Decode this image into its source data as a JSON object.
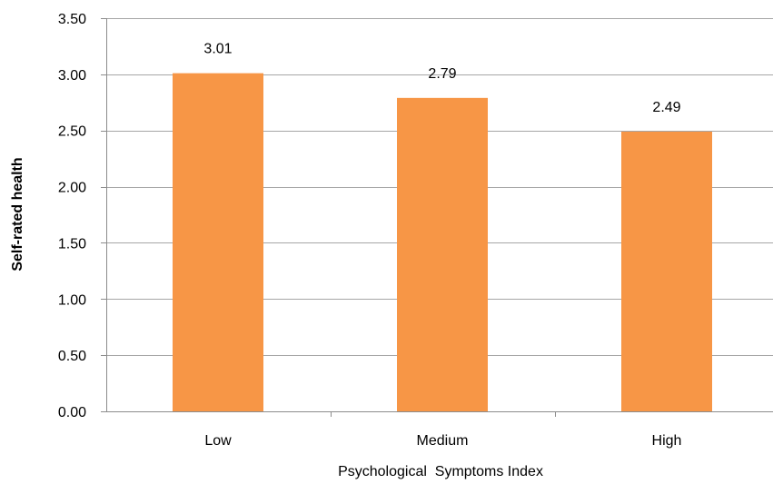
{
  "chart_data": {
    "type": "bar",
    "categories": [
      "Low",
      "Medium",
      "High"
    ],
    "values": [
      3.01,
      2.79,
      2.49
    ],
    "data_labels": [
      "3.01",
      "2.79",
      "2.49"
    ],
    "title": "",
    "xlabel": "Psychological  Symptoms Index",
    "ylabel": "Self-rated health",
    "ylim": [
      0,
      3.5
    ],
    "yticks": [
      "0.00",
      "0.50",
      "1.00",
      "1.50",
      "2.00",
      "2.50",
      "3.00",
      "3.50"
    ],
    "ytick_values": [
      0,
      0.5,
      1,
      1.5,
      2,
      2.5,
      3,
      3.5
    ],
    "grid": true,
    "legend": "none",
    "colors": {
      "bar": "#F79646",
      "grid": "#A6A6A6",
      "axis": "#8C8C8C"
    }
  }
}
